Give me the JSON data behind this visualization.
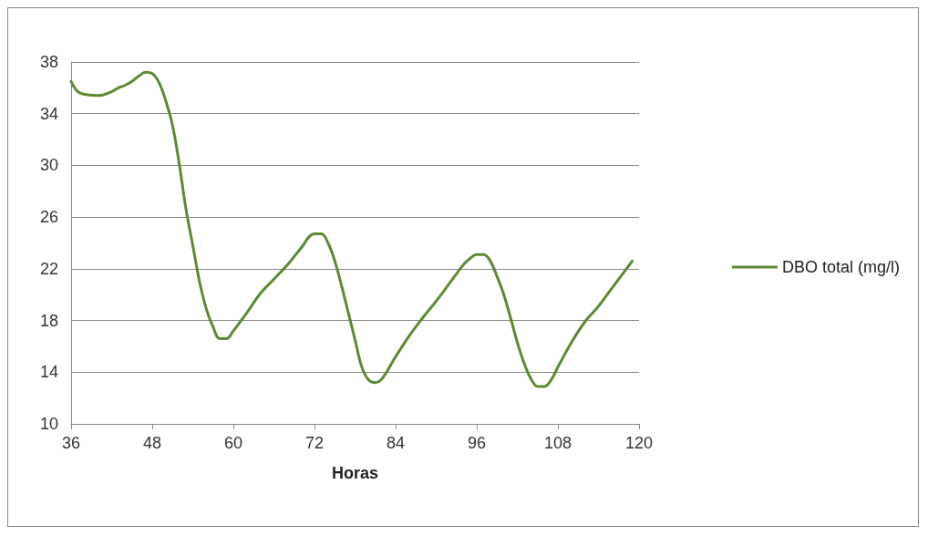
{
  "chart_data": {
    "type": "line",
    "xlabel": "Horas",
    "x": [
      36,
      37,
      38,
      40,
      42,
      43,
      44,
      45,
      46,
      47,
      48,
      49,
      50,
      51,
      52,
      53,
      54,
      55,
      56,
      57,
      58,
      59,
      60,
      62,
      64,
      66,
      68,
      70,
      72,
      73,
      74,
      75,
      76,
      77,
      78,
      79,
      80,
      81,
      82,
      84,
      86,
      88,
      90,
      92,
      94,
      95,
      96,
      97,
      98,
      99,
      100,
      101,
      102,
      103,
      104,
      105,
      106,
      107,
      108,
      110,
      112,
      114,
      116,
      118,
      119
    ],
    "series": [
      {
        "name": "DBO total (mg/l)",
        "color": "#5b8a32",
        "values": [
          36.5,
          35.7,
          35.5,
          35.4,
          35.7,
          36.0,
          36.2,
          36.5,
          36.9,
          37.2,
          37.1,
          36.4,
          35.0,
          33.1,
          30.1,
          26.6,
          23.8,
          21.0,
          18.9,
          17.5,
          16.6,
          16.6,
          17.2,
          18.6,
          20.1,
          21.2,
          22.3,
          23.6,
          24.7,
          24.7,
          24.0,
          22.6,
          20.7,
          18.6,
          16.5,
          14.4,
          13.4,
          13.2,
          13.5,
          15.2,
          16.8,
          18.2,
          19.5,
          20.9,
          22.3,
          22.8,
          23.1,
          23.1,
          22.6,
          21.4,
          20.0,
          18.2,
          16.3,
          14.7,
          13.5,
          12.9,
          12.9,
          13.4,
          14.4,
          16.3,
          17.9,
          19.1,
          20.5,
          21.9,
          22.6
        ]
      }
    ],
    "xlim": [
      36,
      120
    ],
    "xticks": [
      36,
      48,
      60,
      72,
      84,
      96,
      108,
      120
    ],
    "ylim": [
      10,
      38
    ],
    "yticks": [
      10,
      14,
      18,
      22,
      26,
      30,
      34,
      38
    ],
    "grid": "y",
    "legend": "right",
    "marker": "none",
    "line_style": "solid"
  }
}
